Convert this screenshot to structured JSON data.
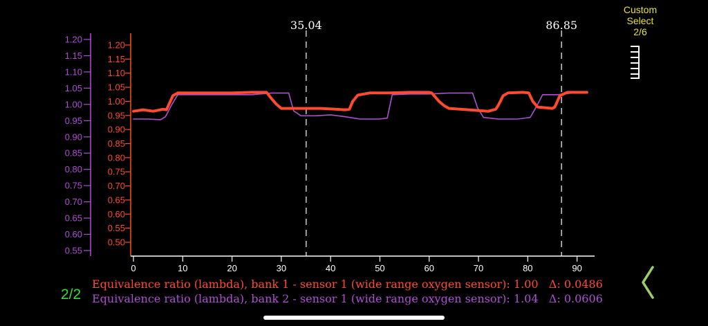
{
  "mode": {
    "line1": "Custom",
    "line2": "Select",
    "line3": "2/6"
  },
  "page_indicator": "2/2",
  "legend": {
    "series1": {
      "name": "Equivalence ratio (lambda), bank 1 - sensor 1 (wide range oxygen sensor)",
      "value": "1.00",
      "delta": "Δ: 0.0486"
    },
    "series2": {
      "name": "Equivalence ratio (lambda), bank 2 - sensor 1 (wide range oxygen sensor)",
      "value": "1.04",
      "delta": "Δ: 0.0606"
    }
  },
  "icons": {
    "select_icon": "tick-ruler-icon",
    "back_icon": "chevron-left-icon"
  },
  "colors": {
    "series1": "#ff4a2e",
    "series2": "#b04ed8",
    "mode_text": "#e8e32a",
    "page_indicator": "#33dd33",
    "back_chevron": "#9acd6e",
    "axis_bottom": "#ffffff",
    "cursor_line": "#cccccc"
  },
  "chart_data": {
    "type": "line",
    "x_ticks": [
      0,
      10,
      20,
      30,
      40,
      50,
      60,
      70,
      80,
      90
    ],
    "xlim": [
      0,
      93
    ],
    "y_ticks_left": [
      "0.55",
      "0.60",
      "0.65",
      "0.70",
      "0.75",
      "0.80",
      "0.85",
      "0.90",
      "0.95",
      "1.00",
      "1.05",
      "1.10",
      "1.15",
      "1.20"
    ],
    "ylim_left": [
      0.54,
      1.22
    ],
    "y_ticks_right": [
      "0.50",
      "0.55",
      "0.60",
      "0.65",
      "0.70",
      "0.75",
      "0.80",
      "0.85",
      "0.90",
      "0.95",
      "1.00",
      "1.05",
      "1.10",
      "1.15",
      "1.20"
    ],
    "ylim_right": [
      0.48,
      1.22
    ],
    "cursors": [
      {
        "x": 35.04,
        "label": "35.04"
      },
      {
        "x": 86.85,
        "label": "86.85"
      }
    ],
    "series": [
      {
        "name": "Equivalence ratio (lambda), bank 1 - sensor 1 (wide range oxygen sensor)",
        "axis": "right",
        "points": [
          [
            0,
            0.965
          ],
          [
            2,
            0.97
          ],
          [
            4,
            0.965
          ],
          [
            6,
            0.972
          ],
          [
            6.7,
            0.97
          ],
          [
            8,
            1.02
          ],
          [
            9,
            1.03
          ],
          [
            12,
            1.03
          ],
          [
            16,
            1.03
          ],
          [
            20,
            1.03
          ],
          [
            24,
            1.032
          ],
          [
            27,
            1.032
          ],
          [
            28,
            1.01
          ],
          [
            29,
            0.99
          ],
          [
            30,
            0.975
          ],
          [
            34,
            0.975
          ],
          [
            38,
            0.975
          ],
          [
            41,
            0.972
          ],
          [
            43,
            0.97
          ],
          [
            43.8,
            0.972
          ],
          [
            44.5,
            1.0
          ],
          [
            45.5,
            1.022
          ],
          [
            48,
            1.03
          ],
          [
            52,
            1.03
          ],
          [
            56,
            1.032
          ],
          [
            60,
            1.032
          ],
          [
            60.5,
            1.03
          ],
          [
            62,
            1.0
          ],
          [
            63,
            0.985
          ],
          [
            64,
            0.975
          ],
          [
            68,
            0.97
          ],
          [
            72,
            0.965
          ],
          [
            73.5,
            0.972
          ],
          [
            74,
            0.985
          ],
          [
            75,
            1.02
          ],
          [
            76,
            1.03
          ],
          [
            79,
            1.032
          ],
          [
            80.2,
            1.03
          ],
          [
            81,
            1.0
          ],
          [
            82,
            0.98
          ],
          [
            85,
            0.975
          ],
          [
            85.5,
            0.98
          ],
          [
            86.5,
            1.02
          ],
          [
            88,
            1.032
          ],
          [
            92,
            1.032
          ]
        ]
      },
      {
        "name": "Equivalence ratio (lambda), bank 2 - sensor 1 (wide range oxygen sensor)",
        "axis": "left",
        "points": [
          [
            0,
            0.955
          ],
          [
            3,
            0.955
          ],
          [
            5.5,
            0.953
          ],
          [
            6.5,
            0.962
          ],
          [
            7.8,
            1.0
          ],
          [
            9,
            1.03
          ],
          [
            12,
            1.03
          ],
          [
            18,
            1.03
          ],
          [
            24,
            1.03
          ],
          [
            28,
            1.035
          ],
          [
            31.5,
            1.035
          ],
          [
            32.5,
            0.98
          ],
          [
            34,
            0.965
          ],
          [
            37,
            0.965
          ],
          [
            40,
            0.968
          ],
          [
            43,
            0.962
          ],
          [
            46,
            0.955
          ],
          [
            50,
            0.955
          ],
          [
            51.5,
            0.958
          ],
          [
            52.5,
            1.03
          ],
          [
            56,
            1.032
          ],
          [
            60,
            1.032
          ],
          [
            64,
            1.035
          ],
          [
            68,
            1.035
          ],
          [
            68.8,
            1.035
          ],
          [
            69.8,
            0.99
          ],
          [
            71,
            0.96
          ],
          [
            74,
            0.955
          ],
          [
            78,
            0.955
          ],
          [
            80.5,
            0.96
          ],
          [
            82,
            1.0
          ],
          [
            83,
            1.03
          ],
          [
            86,
            1.03
          ],
          [
            89,
            1.035
          ],
          [
            92,
            1.035
          ]
        ]
      }
    ]
  }
}
